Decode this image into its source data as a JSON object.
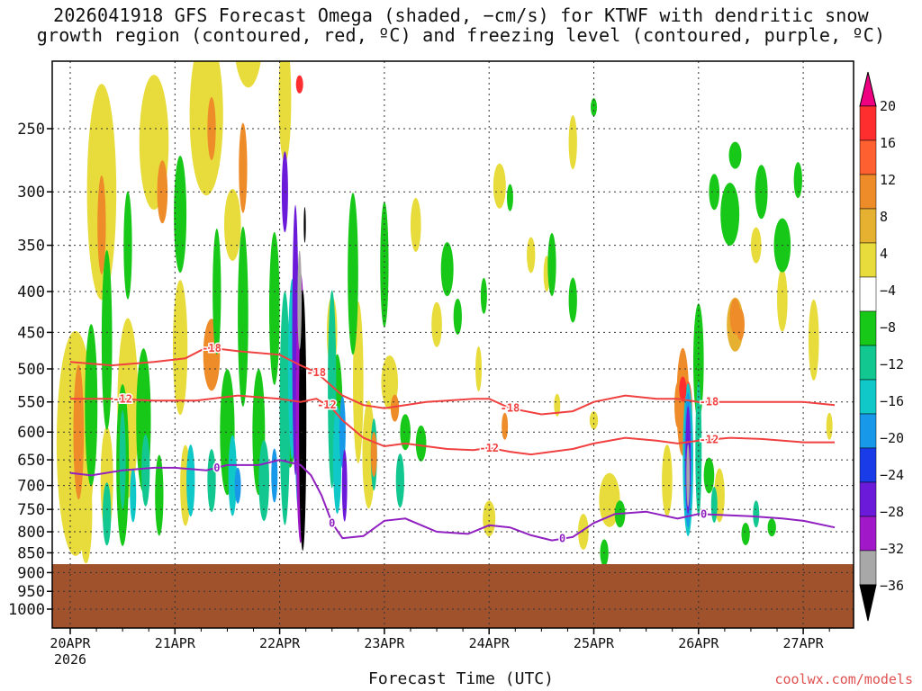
{
  "title": {
    "line1": "2026041918 GFS Forecast Omega (shaded, −cm/s) for KTWF with dendritic snow",
    "line2": "growth region (contoured, red, ºC) and freezing level (contoured, purple, ºC)"
  },
  "watermark": "coolwx.com/models",
  "chart_data": {
    "type": "heatmap",
    "title": "2026041918 GFS Forecast Omega (shaded, −cm/s) for KTWF with dendritic snow growth region (contoured, red, ºC) and freezing level (contoured, purple, ºC)",
    "xlabel": "Forecast Time (UTC)",
    "ylabel": "",
    "x_ticks": [
      "20APR",
      "21APR",
      "22APR",
      "23APR",
      "24APR",
      "25APR",
      "26APR",
      "27APR"
    ],
    "x_tick_year": "2026",
    "y_ticks": [
      250,
      300,
      350,
      400,
      450,
      500,
      550,
      600,
      650,
      700,
      750,
      800,
      850,
      900,
      950,
      1000
    ],
    "y_scale": "log-pressure",
    "grid": true,
    "colorbar": {
      "labels": [
        "20",
        "16",
        "12",
        "8",
        "4",
        "−4",
        "−8",
        "−12",
        "−16",
        "−20",
        "−24",
        "−28",
        "−32",
        "−36"
      ],
      "colors": [
        "#ee0080",
        "#ff2e2e",
        "#ff6030",
        "#ee8c2a",
        "#e6b030",
        "#e8dc3c",
        "#ffffff",
        "#18c818",
        "#12c890",
        "#10c8c8",
        "#1898e8",
        "#1a3ce8",
        "#6a1ad8",
        "#a018c8",
        "#a8a8a8",
        "#000000"
      ]
    },
    "contour_labels": {
      "minus18": "-18",
      "minus12": "-12",
      "zero": "0"
    },
    "series": [
      {
        "name": "-18",
        "x": [
          0,
          0.4,
          0.8,
          1.1,
          1.3,
          1.6,
          2.0,
          2.2,
          2.35,
          2.6,
          2.8,
          3.0,
          3.2,
          3.4,
          3.6,
          3.85,
          4.0,
          4.2,
          4.5,
          4.8,
          5.0,
          5.3,
          5.6,
          5.8,
          6.0,
          6.3,
          6.6,
          7.0,
          7.3
        ],
        "y": [
          490,
          495,
          490,
          485,
          470,
          475,
          480,
          495,
          505,
          540,
          555,
          560,
          555,
          550,
          548,
          545,
          545,
          560,
          570,
          565,
          550,
          540,
          545,
          545,
          550,
          550,
          550,
          550,
          555
        ]
      },
      {
        "name": "-12",
        "x": [
          0,
          0.4,
          0.8,
          1.2,
          1.6,
          2.0,
          2.2,
          2.35,
          2.5,
          2.6,
          2.8,
          3.0,
          3.2,
          3.4,
          3.6,
          3.85,
          4.0,
          4.2,
          4.4,
          4.8,
          5.0,
          5.3,
          5.6,
          5.8,
          6.0,
          6.3,
          6.6,
          7.0,
          7.3
        ],
        "y": [
          545,
          545,
          548,
          548,
          540,
          545,
          550,
          545,
          560,
          580,
          610,
          625,
          620,
          625,
          630,
          632,
          628,
          635,
          640,
          630,
          620,
          610,
          615,
          620,
          615,
          610,
          612,
          618,
          618
        ]
      },
      {
        "name": "0",
        "x": [
          0,
          0.2,
          0.5,
          0.8,
          1.0,
          1.3,
          1.5,
          1.8,
          2.0,
          2.2,
          2.3,
          2.4,
          2.5,
          2.6,
          2.8,
          3.0,
          3.2,
          3.5,
          3.8,
          4.0,
          4.2,
          4.4,
          4.6,
          4.8,
          5.0,
          5.2,
          5.5,
          5.8,
          6.0,
          6.2,
          6.5,
          6.8,
          7.0,
          7.3
        ],
        "y": [
          675,
          680,
          670,
          665,
          665,
          670,
          660,
          660,
          650,
          660,
          680,
          720,
          780,
          815,
          810,
          775,
          770,
          800,
          805,
          785,
          790,
          808,
          820,
          812,
          780,
          760,
          755,
          770,
          760,
          762,
          765,
          770,
          775,
          790
        ]
      }
    ],
    "shaded_features": [
      {
        "desc": "strongest ascent core",
        "x_center": 2.2,
        "p_top": 320,
        "p_bottom": 830,
        "value": -36
      },
      {
        "desc": "ascent column",
        "x_center": 5.9,
        "p_top": 560,
        "p_bottom": 810,
        "value": -32
      }
    ]
  }
}
